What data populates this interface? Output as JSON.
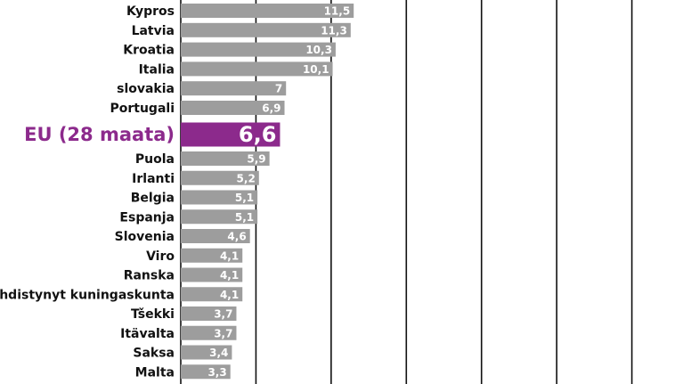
{
  "chart_data": {
    "type": "hbar",
    "categories": [
      "Kypros",
      "Latvia",
      "Kroatia",
      "Italia",
      "slovakia",
      "Portugali",
      "EU (28 maata)",
      "Puola",
      "Irlanti",
      "Belgia",
      "Espanja",
      "Slovenia",
      "Viro",
      "Ranska",
      "Yhdistynyt kuningaskunta",
      "Tšekki",
      "Itävalta",
      "Saksa",
      "Malta"
    ],
    "values": [
      11.5,
      11.3,
      10.3,
      10.1,
      7,
      6.9,
      6.6,
      5.9,
      5.2,
      5.1,
      5.1,
      4.6,
      4.1,
      4.1,
      4.1,
      3.7,
      3.7,
      3.4,
      3.3
    ],
    "value_labels": [
      "11,5",
      "11,3",
      "10,3",
      "10,1",
      "7",
      "6,9",
      "6,6",
      "5,9",
      "5,2",
      "5,1",
      "5,1",
      "4,6",
      "4,1",
      "4,1",
      "4,1",
      "3,7",
      "3,7",
      "3,4",
      "3,3"
    ],
    "colors": [
      "#9d9d9d",
      "#9d9d9d",
      "#9d9d9d",
      "#9d9d9d",
      "#9d9d9d",
      "#9d9d9d",
      "#8c2a8c",
      "#9d9d9d",
      "#9d9d9d",
      "#9d9d9d",
      "#9d9d9d",
      "#9d9d9d",
      "#9d9d9d",
      "#9d9d9d",
      "#9d9d9d",
      "#9d9d9d",
      "#9d9d9d",
      "#9d9d9d",
      "#9d9d9d"
    ],
    "xlim": [
      0,
      33.4
    ],
    "xticks": [
      0,
      5,
      10,
      15,
      20,
      25,
      30
    ],
    "grid": true
  }
}
